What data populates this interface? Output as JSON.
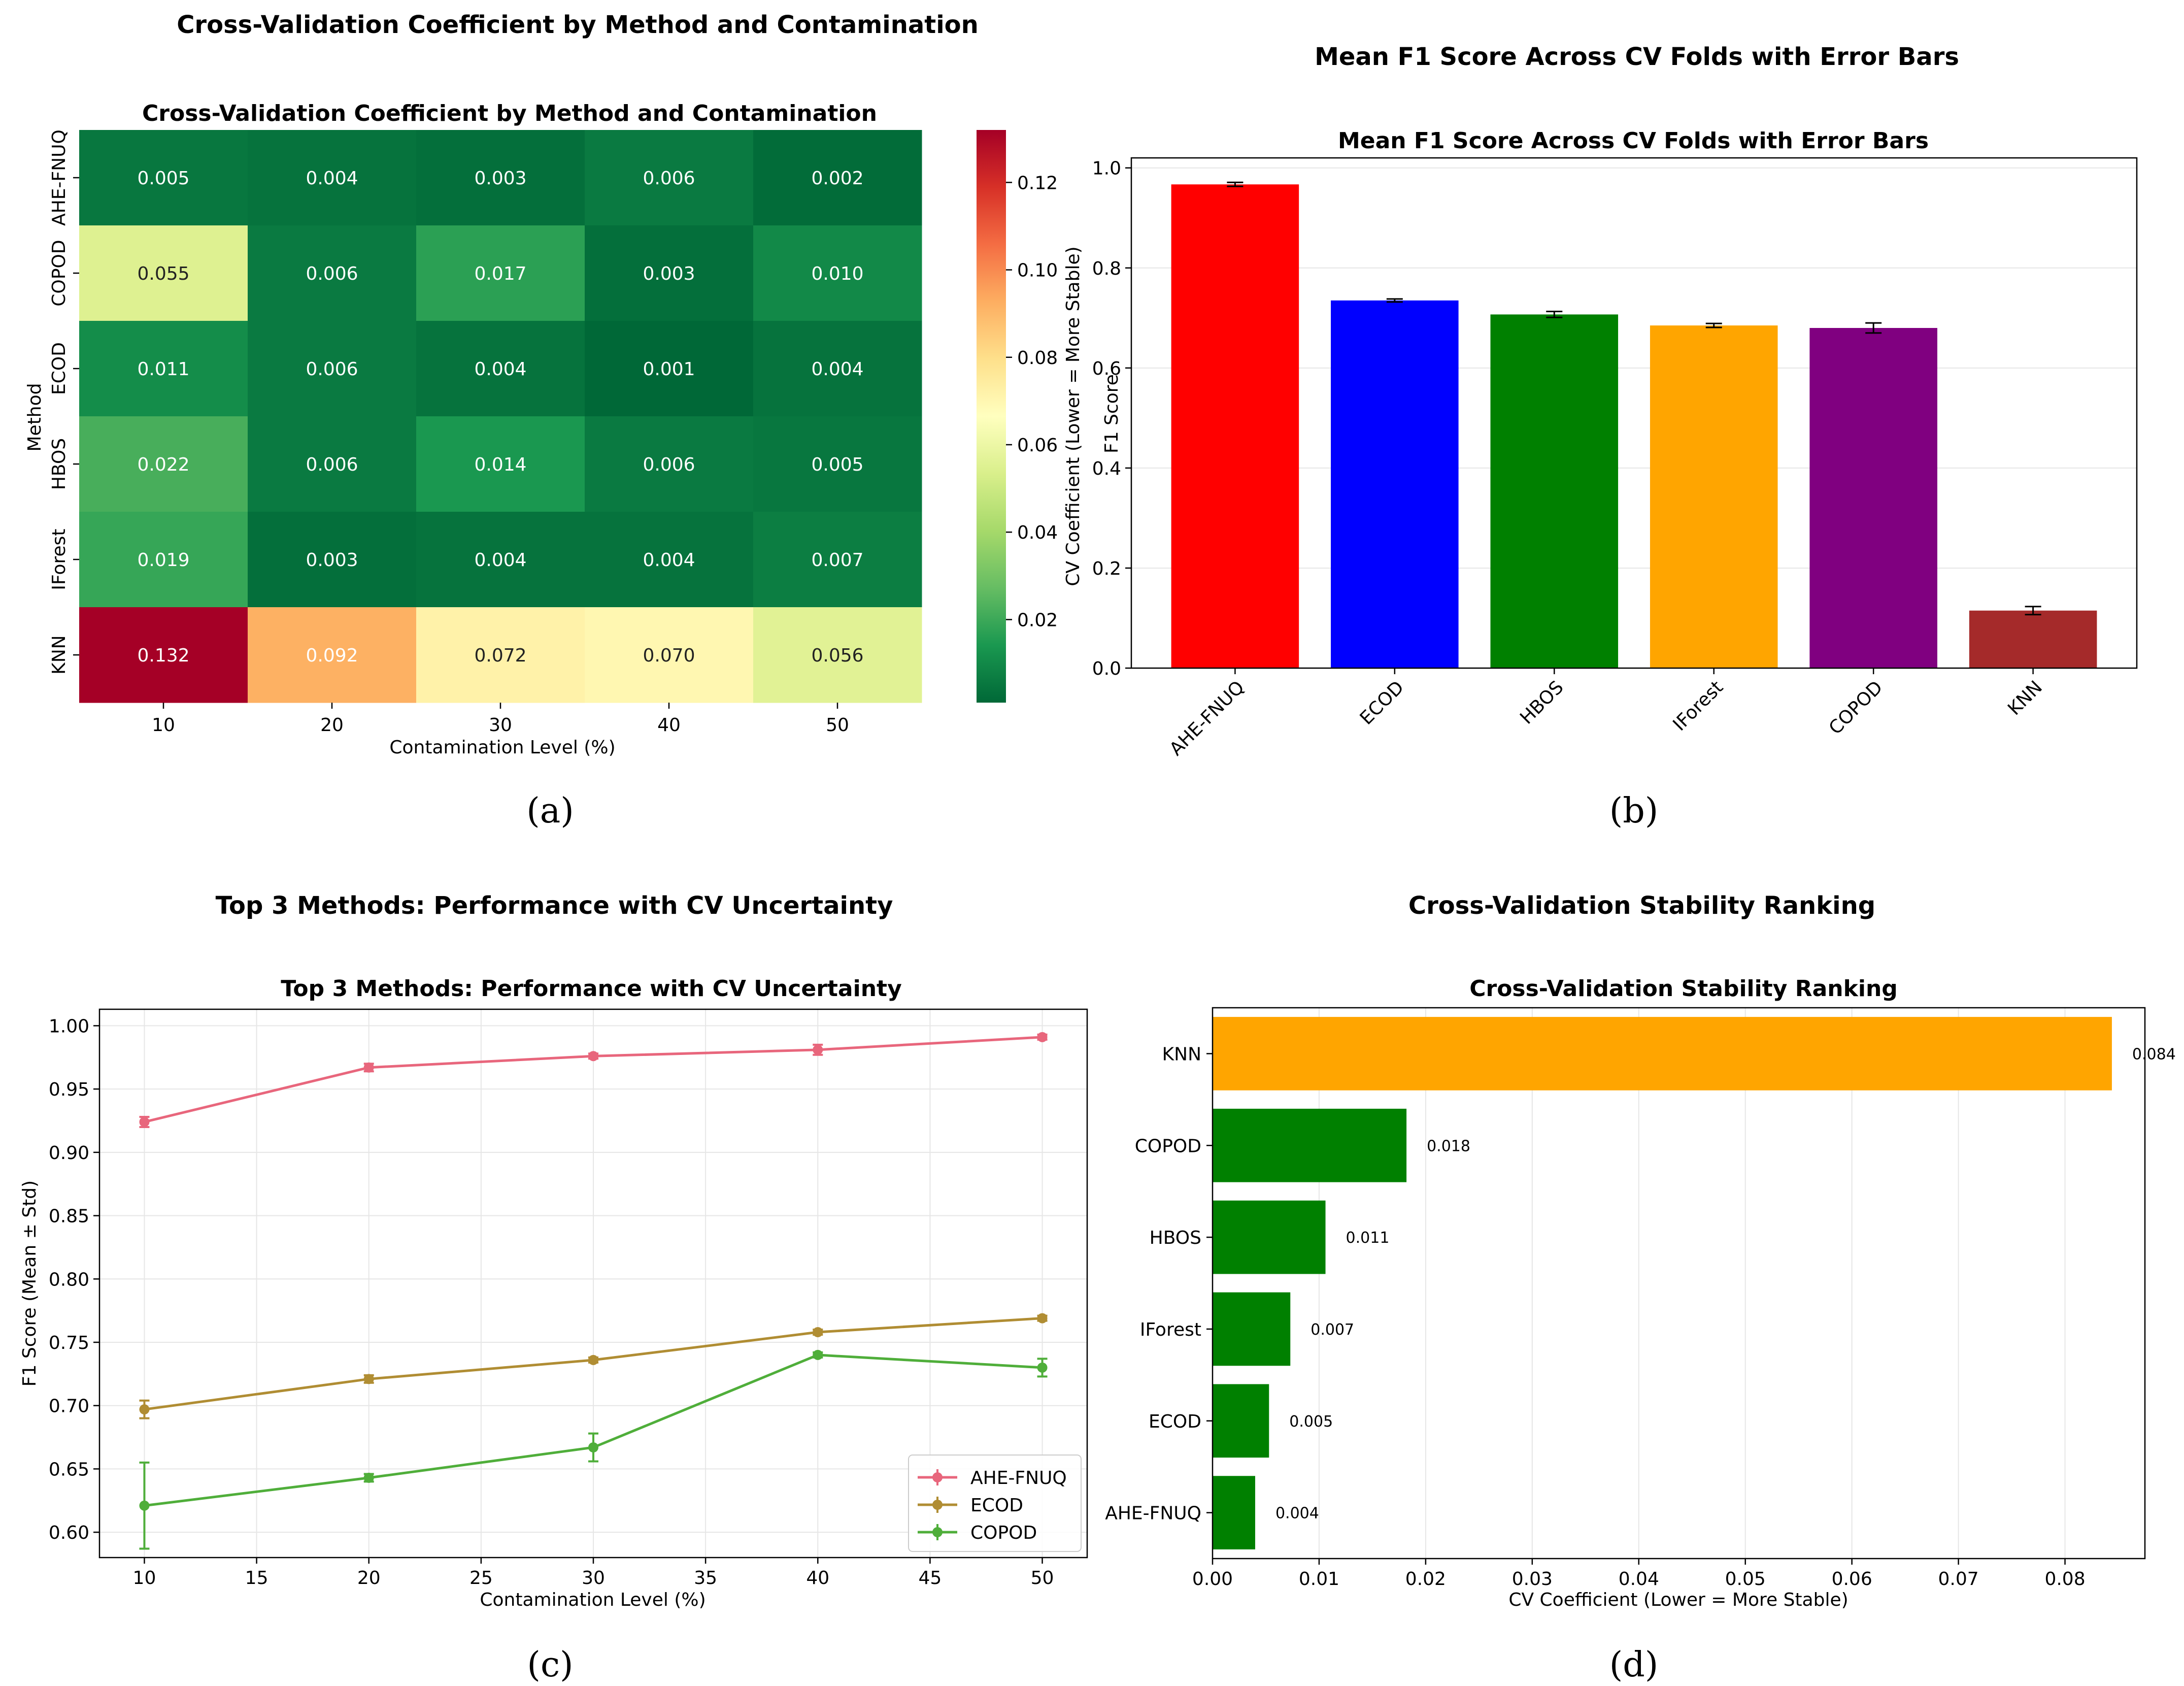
{
  "panels": {
    "a": "(a)",
    "b": "(b)",
    "c": "(c)",
    "d": "(d)"
  },
  "chart_data": [
    {
      "type": "heatmap",
      "suptitle": "Cross-Validation Coefficient by Method and Contamination",
      "title": "Cross-Validation Coefficient by Method and Contamination",
      "xlabel": "Contamination Level (%)",
      "ylabel": "Method",
      "x": [
        "10",
        "20",
        "30",
        "40",
        "50"
      ],
      "y": [
        "AHE-FNUQ",
        "COPOD",
        "ECOD",
        "HBOS",
        "IForest",
        "KNN"
      ],
      "values": [
        [
          0.005,
          0.004,
          0.003,
          0.006,
          0.002
        ],
        [
          0.055,
          0.006,
          0.017,
          0.003,
          0.01
        ],
        [
          0.011,
          0.006,
          0.004,
          0.001,
          0.004
        ],
        [
          0.022,
          0.006,
          0.014,
          0.006,
          0.005
        ],
        [
          0.019,
          0.003,
          0.004,
          0.004,
          0.007
        ],
        [
          0.132,
          0.092,
          0.072,
          0.07,
          0.056
        ]
      ],
      "labels": [
        [
          "0.005",
          "0.004",
          "0.003",
          "0.006",
          "0.002"
        ],
        [
          "0.055",
          "0.006",
          "0.017",
          "0.003",
          "0.010"
        ],
        [
          "0.011",
          "0.006",
          "0.004",
          "0.001",
          "0.004"
        ],
        [
          "0.022",
          "0.006",
          "0.014",
          "0.006",
          "0.005"
        ],
        [
          "0.019",
          "0.003",
          "0.004",
          "0.004",
          "0.007"
        ],
        [
          "0.132",
          "0.092",
          "0.072",
          "0.070",
          "0.056"
        ]
      ],
      "colorbar": {
        "label": "CV Coefficient (Lower = More Stable)",
        "range": [
          0.001,
          0.132
        ],
        "ticks": [
          0.02,
          0.04,
          0.06,
          0.08,
          0.1,
          0.12
        ],
        "tick_labels": [
          "0.02",
          "0.04",
          "0.06",
          "0.08",
          "0.10",
          "0.12"
        ],
        "colormap": "RdYlGn_r"
      }
    },
    {
      "type": "bar",
      "suptitle": "Mean F1 Score Across CV Folds with Error Bars",
      "title": "Mean F1 Score Across CV Folds with Error Bars",
      "xlabel": "",
      "ylabel": "F1 Score",
      "categories": [
        "AHE-FNUQ",
        "ECOD",
        "HBOS",
        "IForest",
        "COPOD",
        "KNN"
      ],
      "values": [
        0.967,
        0.735,
        0.707,
        0.685,
        0.68,
        0.115
      ],
      "errors": [
        0.004,
        0.003,
        0.006,
        0.004,
        0.01,
        0.008
      ],
      "colors": [
        "#ff0000",
        "#0000ff",
        "#008000",
        "#ffa500",
        "#800080",
        "#a52a2a"
      ],
      "ylim": [
        0,
        1.02
      ],
      "yticks": [
        "0.0",
        "0.2",
        "0.4",
        "0.6",
        "0.8",
        "1.0"
      ],
      "grid": true
    },
    {
      "type": "line",
      "suptitle": "Top 3 Methods: Performance with CV Uncertainty",
      "title": "Top 3 Methods: Performance with CV Uncertainty",
      "xlabel": "Contamination Level (%)",
      "ylabel": "F1 Score (Mean ± Std)",
      "x": [
        10,
        20,
        30,
        40,
        50
      ],
      "xlim": [
        8,
        52
      ],
      "ylim": [
        0.58,
        1.013
      ],
      "xticks": [
        "10",
        "15",
        "20",
        "25",
        "30",
        "35",
        "40",
        "45",
        "50"
      ],
      "yticks": [
        "0.60",
        "0.65",
        "0.70",
        "0.75",
        "0.80",
        "0.85",
        "0.90",
        "0.95",
        "1.00"
      ],
      "series": [
        {
          "name": "AHE-FNUQ",
          "color": "#e8667c",
          "values": [
            0.924,
            0.967,
            0.976,
            0.981,
            0.991
          ],
          "errors": [
            0.004,
            0.003,
            0.002,
            0.004,
            0.002
          ]
        },
        {
          "name": "ECOD",
          "color": "#b08d33",
          "values": [
            0.697,
            0.721,
            0.736,
            0.758,
            0.769
          ],
          "errors": [
            0.007,
            0.003,
            0.002,
            0.002,
            0.002
          ]
        },
        {
          "name": "COPOD",
          "color": "#4fae3a",
          "values": [
            0.621,
            0.643,
            0.667,
            0.74,
            0.73
          ],
          "errors": [
            0.034,
            0.003,
            0.011,
            0.002,
            0.007
          ]
        }
      ],
      "legend": "lower-right",
      "grid": true
    },
    {
      "type": "bar",
      "orientation": "horizontal",
      "suptitle": "Cross-Validation Stability Ranking",
      "title": "Cross-Validation Stability Ranking",
      "xlabel": "CV Coefficient (Lower = More Stable)",
      "ylabel": "",
      "categories": [
        "KNN",
        "COPOD",
        "HBOS",
        "IForest",
        "ECOD",
        "AHE-FNUQ"
      ],
      "values": [
        0.0844,
        0.0182,
        0.0106,
        0.0073,
        0.0053,
        0.004
      ],
      "labels": [
        "0.084",
        "0.018",
        "0.011",
        "0.007",
        "0.005",
        "0.004"
      ],
      "colors": [
        "#ffa500",
        "#008000",
        "#008000",
        "#008000",
        "#008000",
        "#008000"
      ],
      "xlim": [
        0,
        0.0875
      ],
      "xticks": [
        "0.00",
        "0.01",
        "0.02",
        "0.03",
        "0.04",
        "0.05",
        "0.06",
        "0.07",
        "0.08"
      ],
      "grid": true
    }
  ]
}
